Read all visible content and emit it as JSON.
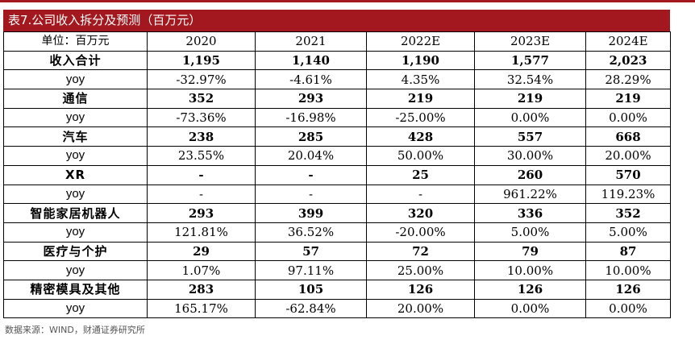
{
  "title": "表7.公司收入拆分及预测（百万元）",
  "header": {
    "unit_label": "单位：百万元",
    "years": [
      "2020",
      "2021",
      "2022E",
      "2023E",
      "2024E"
    ]
  },
  "rows": [
    {
      "label": "收入合计",
      "bold": true,
      "values": [
        "1,195",
        "1,140",
        "1,190",
        "1,577",
        "2,023"
      ]
    },
    {
      "label": "yoy",
      "bold": false,
      "values": [
        "-32.97%",
        "-4.61%",
        "4.35%",
        "32.54%",
        "28.29%"
      ]
    },
    {
      "label": "通信",
      "bold": true,
      "values": [
        "352",
        "293",
        "219",
        "219",
        "219"
      ]
    },
    {
      "label": "yoy",
      "bold": false,
      "values": [
        "-73.36%",
        "-16.98%",
        "-25.00%",
        "0.00%",
        "0.00%"
      ]
    },
    {
      "label": "汽车",
      "bold": true,
      "values": [
        "238",
        "285",
        "428",
        "557",
        "668"
      ]
    },
    {
      "label": "yoy",
      "bold": false,
      "values": [
        "23.55%",
        "20.04%",
        "50.00%",
        "30.00%",
        "20.00%"
      ]
    },
    {
      "label": "XR",
      "bold": true,
      "values": [
        "-",
        "-",
        "25",
        "260",
        "570"
      ]
    },
    {
      "label": "yoy",
      "bold": false,
      "values": [
        "-",
        "-",
        "-",
        "961.22%",
        "119.23%"
      ]
    },
    {
      "label": "智能家居机器人",
      "bold": true,
      "values": [
        "293",
        "399",
        "320",
        "336",
        "352"
      ]
    },
    {
      "label": "yoy",
      "bold": false,
      "values": [
        "121.81%",
        "36.52%",
        "-20.00%",
        "5.00%",
        "5.00%"
      ]
    },
    {
      "label": "医疗与个护",
      "bold": true,
      "values": [
        "29",
        "57",
        "72",
        "79",
        "87"
      ]
    },
    {
      "label": "yoy",
      "bold": false,
      "values": [
        "1.07%",
        "97.11%",
        "25.00%",
        "10.00%",
        "10.00%"
      ]
    },
    {
      "label": "精密模具及其他",
      "bold": true,
      "values": [
        "283",
        "105",
        "126",
        "126",
        "126"
      ]
    },
    {
      "label": "yoy",
      "bold": false,
      "values": [
        "165.17%",
        "-62.84%",
        "20.00%",
        "0.00%",
        "0.00%"
      ]
    }
  ],
  "source": "数据来源：WIND，财通证券研究所",
  "colors": {
    "title_bar": "#a3181e",
    "title_text": "#ffffff"
  }
}
